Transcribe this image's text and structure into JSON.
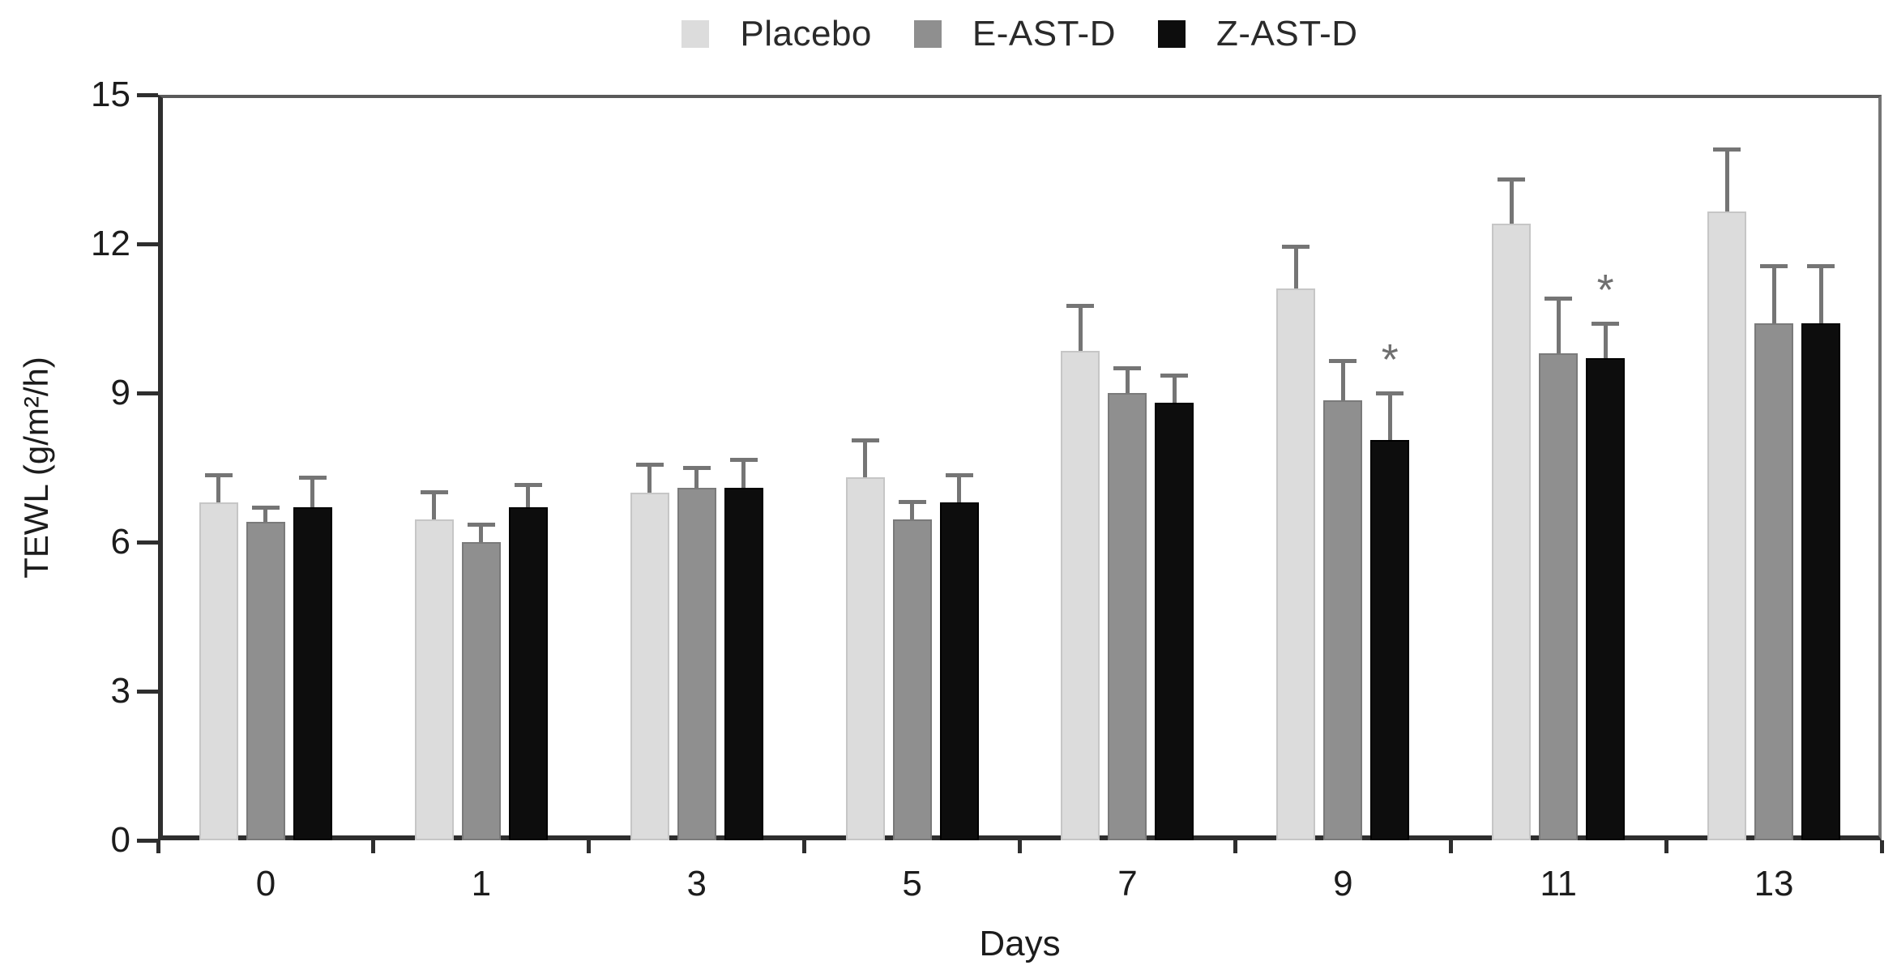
{
  "chart_data": {
    "type": "bar",
    "title": "",
    "xlabel": "Days",
    "ylabel": "TEWL (g/m²/h)",
    "ylim": [
      0,
      15
    ],
    "yticks": [
      0,
      3,
      6,
      9,
      12,
      15
    ],
    "categories": [
      "0",
      "1",
      "3",
      "5",
      "7",
      "9",
      "11",
      "13"
    ],
    "grid": false,
    "legend_position": "top-center",
    "error_bars": "upper-only",
    "error_color": "#757575",
    "significance_marker": "*",
    "series": [
      {
        "name": "Placebo",
        "color": "#dcdcdc",
        "border_color": "#c6c6c6",
        "values": [
          6.8,
          6.45,
          7.0,
          7.3,
          9.85,
          11.1,
          12.4,
          12.65
        ],
        "errors": [
          0.55,
          0.55,
          0.55,
          0.75,
          0.9,
          0.85,
          0.9,
          1.25
        ],
        "annotations": [
          "",
          "",
          "",
          "",
          "",
          "",
          "",
          ""
        ]
      },
      {
        "name": "E-AST-D",
        "color": "#8f8f8f",
        "border_color": "#7a7a7a",
        "values": [
          6.4,
          6.0,
          7.1,
          6.45,
          9.0,
          8.85,
          9.8,
          10.4
        ],
        "errors": [
          0.3,
          0.35,
          0.4,
          0.35,
          0.5,
          0.8,
          1.1,
          1.15
        ],
        "annotations": [
          "",
          "",
          "",
          "",
          "",
          "",
          "",
          ""
        ]
      },
      {
        "name": "Z-AST-D",
        "color": "#0d0d0d",
        "border_color": "#000000",
        "values": [
          6.7,
          6.7,
          7.1,
          6.8,
          8.8,
          8.05,
          9.7,
          10.4
        ],
        "errors": [
          0.6,
          0.45,
          0.55,
          0.55,
          0.55,
          0.95,
          0.7,
          1.15
        ],
        "annotations": [
          "",
          "",
          "",
          "",
          "",
          "*",
          "*",
          ""
        ]
      }
    ]
  }
}
